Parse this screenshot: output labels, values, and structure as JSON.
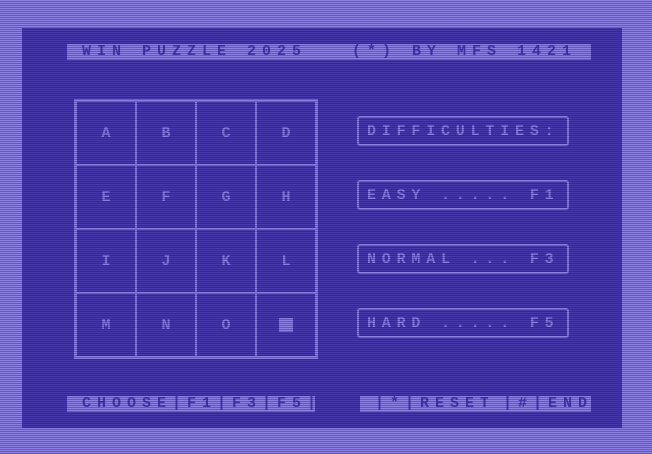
{
  "header": {
    "title": " WIN PUZZLE 2025   (*) BY MFS 1421 "
  },
  "grid": {
    "tiles": [
      "A",
      "B",
      "C",
      "D",
      "E",
      "F",
      "G",
      "H",
      "I",
      "J",
      "K",
      "L",
      "M",
      "N",
      "O",
      ""
    ]
  },
  "menu": {
    "heading": "DIFFICULTIES:",
    "easy": "EASY ..... F1",
    "normal": "NORMAL ... F3",
    "hard": "HARD ..... F5"
  },
  "footer": {
    "choose": " CHOOSE|F1|F3|F5| ",
    "reset": " |*|RESET ",
    "end": " |#|END "
  },
  "colors": {
    "border": "#8c80e0",
    "background": "#483aaa",
    "text": "#8c80e0"
  }
}
